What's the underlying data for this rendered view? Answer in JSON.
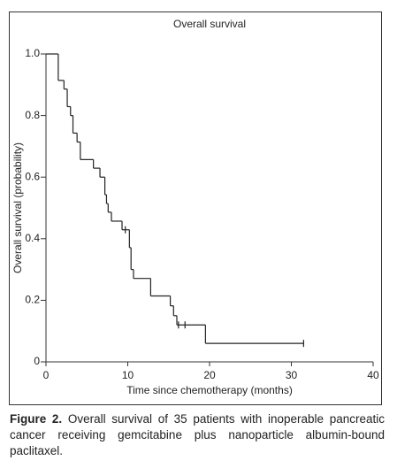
{
  "chart_data": {
    "type": "km",
    "title": "Overall survival",
    "xlabel": "Time since chemotherapy (months)",
    "ylabel": "Overall survival (probability)",
    "x": [
      0,
      1.5,
      2.2,
      2.6,
      3.0,
      3.3,
      3.8,
      4.2,
      5.8,
      6.6,
      7.2,
      7.4,
      7.6,
      8.0,
      9.3,
      10.2,
      10.4,
      10.7,
      12.8,
      15.2,
      15.6,
      16.0,
      19.5
    ],
    "values": [
      1.0,
      0.914,
      0.886,
      0.829,
      0.8,
      0.743,
      0.714,
      0.657,
      0.629,
      0.6,
      0.543,
      0.514,
      0.486,
      0.457,
      0.429,
      0.371,
      0.3,
      0.271,
      0.214,
      0.182,
      0.15,
      0.12,
      0.06
    ],
    "censored_x": [
      9.7,
      16.2,
      17.0,
      31.5
    ],
    "censored_y": [
      0.429,
      0.12,
      0.12,
      0.06
    ],
    "color": "#222222",
    "xlim": [
      0,
      40
    ],
    "xticks": [
      0,
      10,
      20,
      30,
      40
    ],
    "ylim": [
      0,
      1
    ],
    "yticks": [
      0,
      0.2,
      0.4,
      0.6,
      0.8,
      {
        "value": 1,
        "label": "1.0"
      }
    ]
  },
  "caption": {
    "label": "Figure 2.",
    "text": " Overall survival of 35 patients with inoperable pancreatic cancer receiving gemcitabine plus nanoparticle albumin-bound paclitaxel."
  }
}
